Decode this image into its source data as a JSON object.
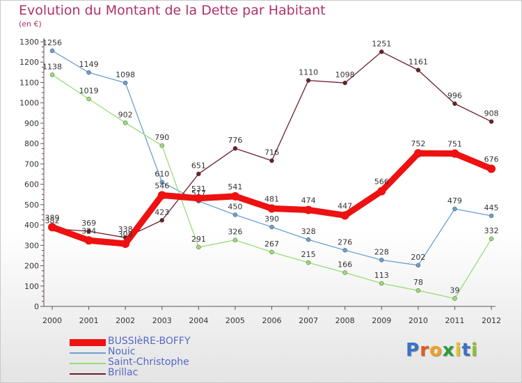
{
  "header": {
    "title": "Evolution du Montant de la Dette par Habitant",
    "subtitle": "(en €)"
  },
  "logo": {
    "text": "Proxiti",
    "letter_colors": [
      "#3a73c9",
      "#e8591c",
      "#f0a020",
      "#2d9b3a",
      "#e8c020",
      "#3a73c9",
      "#8fbf2a"
    ]
  },
  "chart_data": {
    "type": "line",
    "title": "Evolution du Montant de la Dette par Habitant",
    "subtitle": "(en €)",
    "x": [
      "2000",
      "2001",
      "2002",
      "2003",
      "2004",
      "2005",
      "2006",
      "2007",
      "2008",
      "2009",
      "2010",
      "2011",
      "2012"
    ],
    "ylim": [
      0,
      1300
    ],
    "yticks": [
      0,
      100,
      200,
      300,
      400,
      500,
      600,
      700,
      800,
      900,
      1000,
      1100,
      1200,
      1300
    ],
    "grid": false,
    "legend_position": "bottom-left",
    "series": [
      {
        "name": "Nouic",
        "color": "#6a9fd0",
        "values": [
          1256,
          1149,
          1098,
          610,
          517,
          450,
          390,
          328,
          276,
          228,
          202,
          479,
          445
        ]
      },
      {
        "name": "Saint-Christophe",
        "color": "#99dd77",
        "values": [
          1138,
          1019,
          902,
          790,
          291,
          326,
          267,
          215,
          166,
          113,
          78,
          39,
          332
        ]
      },
      {
        "name": "Brillac",
        "color": "#6b1f28",
        "values": [
          382,
          369,
          338,
          423,
          651,
          776,
          716,
          1110,
          1098,
          1251,
          1161,
          996,
          908
        ]
      },
      {
        "name": "BUSSIèRE-BOFFY",
        "color": "#ee1111",
        "values": [
          389,
          324,
          308,
          546,
          531,
          541,
          481,
          474,
          447,
          566,
          752,
          751,
          676
        ]
      }
    ],
    "legend": [
      "BUSSIèRE-BOFFY",
      "Nouic",
      "Saint-Christophe",
      "Brillac"
    ]
  }
}
